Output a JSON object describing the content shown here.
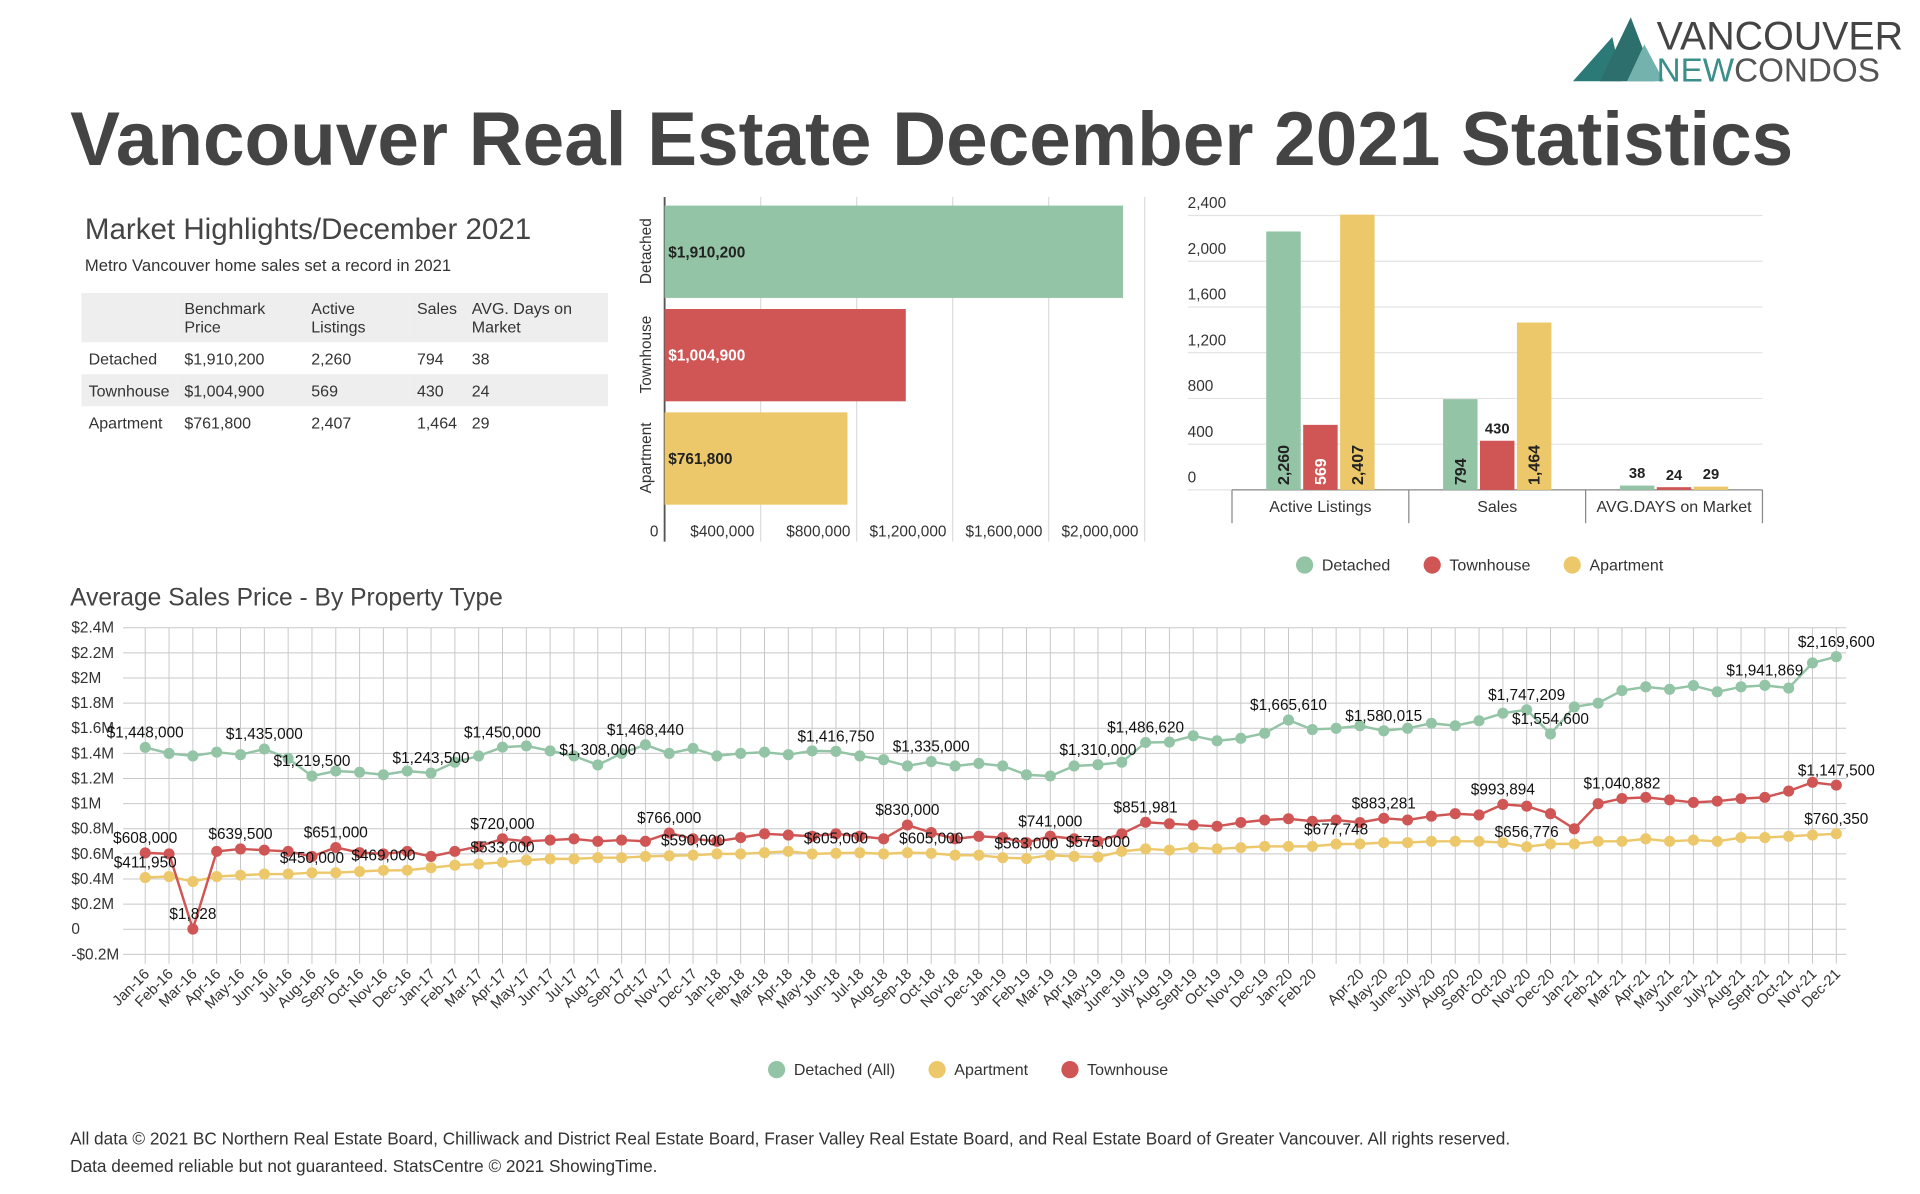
{
  "header": {
    "title": "Vancouver Real Estate December 2021 Statistics",
    "logo_brand": "VANCOUVER",
    "logo_new": "NEW",
    "logo_condos": "CONDOS"
  },
  "highlights": {
    "title": "Market Highlights/December 2021",
    "subtitle": "Metro Vancouver home sales set a record in 2021",
    "columns": [
      "Benchmark Price",
      "Active Listings",
      "Sales",
      "AVG. Days on Market"
    ],
    "rows": [
      [
        "Detached",
        "$1,910,200",
        "2,260",
        "794",
        "38"
      ],
      [
        "Townhouse",
        "$1,004,900",
        "569",
        "430",
        "24"
      ],
      [
        "Apartment",
        "$761,800",
        "2,407",
        "1,464",
        "29"
      ]
    ]
  },
  "footer": [
    "All data © 2021 BC Northern Real Estate Board, Chilliwack and District Real Estate Board, Fraser Valley Real Estate Board, and Real Estate Board of Greater Vancouver. All rights reserved.",
    "Data deemed reliable but not guaranteed. StatsCentre © 2021 ShowingTime."
  ],
  "chart_data": [
    {
      "type": "bar",
      "orientation": "horizontal",
      "categories": [
        "Detached",
        "Townhouse",
        "Apartment"
      ],
      "values": [
        1910200,
        1004900,
        761800
      ],
      "value_labels": [
        "$1,910,200",
        "$1,004,900",
        "$761,800"
      ],
      "colors": [
        "#93c4a5",
        "#d05656",
        "#edc86b"
      ],
      "xlim": [
        0,
        2000000
      ],
      "xticks": [
        0,
        {
          "value": 400000,
          "label": "$400,000"
        },
        {
          "value": 800000,
          "label": "$800,000"
        },
        {
          "value": 1200000,
          "label": "$1,200,000"
        },
        {
          "value": 1600000,
          "label": "$1,600,000"
        },
        {
          "value": 2000000,
          "label": "$2,000,000"
        }
      ],
      "grid": true
    },
    {
      "type": "bar",
      "categories": [
        "Active Listings",
        "Sales",
        "AVG.DAYS on Market"
      ],
      "series": [
        {
          "name": "Detached",
          "color": "#93c4a5",
          "values": [
            2260,
            794,
            38
          ],
          "value_labels": [
            "2,260",
            "794",
            "38"
          ]
        },
        {
          "name": "Townhouse",
          "color": "#d05656",
          "values": [
            569,
            430,
            24
          ],
          "value_labels": [
            "569",
            "430",
            "24"
          ]
        },
        {
          "name": "Apartment",
          "color": "#edc86b",
          "values": [
            2407,
            1464,
            29
          ],
          "value_labels": [
            "2,407",
            "1,464",
            "29"
          ]
        }
      ],
      "ylim": [
        0,
        2400
      ],
      "yticks": [
        0,
        400,
        800,
        {
          "value": 1200,
          "label": "1,200"
        },
        {
          "value": 1600,
          "label": "1,600"
        },
        {
          "value": 2000,
          "label": "2,000"
        },
        {
          "value": 2400,
          "label": "2,400"
        }
      ],
      "grid": true,
      "legend": "bottom"
    },
    {
      "type": "line",
      "title": "Average Sales Price - By Property Type",
      "categories": [
        "Jan-16",
        "Feb-16",
        "Mar-16",
        "Apr-16",
        "May-16",
        "Jun-16",
        "Jul-16",
        "Aug-16",
        "Sep-16",
        "Oct-16",
        "Nov-16",
        "Dec-16",
        "Jan-17",
        "Feb-17",
        "Mar-17",
        "Apr-17",
        "May-17",
        "Jun-17",
        "Jul-17",
        "Aug-17",
        "Sep-17",
        "Oct-17",
        "Nov-17",
        "Dec-17",
        "Jan-18",
        "Feb-18",
        "Mar-18",
        "Apr-18",
        "May-18",
        "Jun-18",
        "Jul-18",
        "Aug-18",
        "Sep-18",
        "Oct-18",
        "Nov-18",
        "Dec-18",
        "Jan-19",
        "Feb-19",
        "Mar-19",
        "Apr-19",
        "May-19",
        "June-19",
        "July-19",
        "Aug-19",
        "Sept-19",
        "Oct-19",
        "Nov-19",
        "Dec-19",
        "Jan-20",
        "Feb-20",
        null,
        "Apr-20",
        "May-20",
        "June-20",
        "July-20",
        "Aug-20",
        "Sept-20",
        "Oct-20",
        "Nov-20",
        "Dec-20",
        "Jan-21",
        "Feb-21",
        "Mar-21",
        "Apr-21",
        "May-21",
        "June-21",
        "July-21",
        "Aug-21",
        "Sept-21",
        "Oct-21",
        "Nov-21",
        "Dec-21"
      ],
      "series": [
        {
          "name": "Detached (All)",
          "color": "#93c4a5",
          "values": [
            1448000,
            1400000,
            1380000,
            1410000,
            1390000,
            1435000,
            1360000,
            1219500,
            1260000,
            1250000,
            1230000,
            1260000,
            1243500,
            1330000,
            1380000,
            1450000,
            1460000,
            1420000,
            1380000,
            1308000,
            1400000,
            1468440,
            1400000,
            1440000,
            1380000,
            1400000,
            1410000,
            1390000,
            1420000,
            1416750,
            1380000,
            1350000,
            1300000,
            1335000,
            1300000,
            1320000,
            1300000,
            1230000,
            1220000,
            1300000,
            1310000,
            1330000,
            1486620,
            1490000,
            1540000,
            1500000,
            1520000,
            1560000,
            1665610,
            1590000,
            1600000,
            1620000,
            1580015,
            1600000,
            1640000,
            1620000,
            1660000,
            1720000,
            1747209,
            1554600,
            1770000,
            1800000,
            1900000,
            1930000,
            1910000,
            1940000,
            1890000,
            1930000,
            1941869,
            1920000,
            2120000,
            2169600
          ],
          "value_labels": [
            "$1,448,000",
            null,
            null,
            null,
            null,
            "$1,435,000",
            null,
            "$1,219,500",
            null,
            null,
            null,
            null,
            "$1,243,500",
            null,
            null,
            "$1,450,000",
            null,
            null,
            null,
            "$1,308,000",
            null,
            "$1,468,440",
            null,
            null,
            null,
            null,
            null,
            null,
            null,
            "$1,416,750",
            null,
            null,
            null,
            "$1,335,000",
            null,
            null,
            null,
            null,
            null,
            null,
            "$1,310,000",
            null,
            "$1,486,620",
            null,
            null,
            null,
            null,
            null,
            "$1,665,610",
            null,
            null,
            null,
            "$1,580,015",
            null,
            null,
            null,
            null,
            null,
            "$1,747,209",
            "$1,554,600",
            null,
            null,
            null,
            null,
            null,
            null,
            null,
            null,
            "$1,941,869",
            null,
            null,
            "$2,169,600"
          ]
        },
        {
          "name": "Apartment",
          "color": "#edc86b",
          "values": [
            411950,
            420000,
            380000,
            420000,
            430000,
            440000,
            440000,
            450000,
            450000,
            460000,
            469000,
            470000,
            490000,
            510000,
            520000,
            533000,
            550000,
            560000,
            560000,
            570000,
            570000,
            580000,
            585000,
            590000,
            600000,
            600000,
            610000,
            620000,
            600000,
            605000,
            610000,
            600000,
            610000,
            605000,
            590000,
            590000,
            570000,
            563000,
            590000,
            580000,
            575000,
            620000,
            640000,
            630000,
            650000,
            640000,
            650000,
            660000,
            660000,
            660000,
            677748,
            680000,
            690000,
            690000,
            700000,
            700000,
            700000,
            690000,
            656776,
            680000,
            680000,
            700000,
            700000,
            720000,
            700000,
            710000,
            700000,
            730000,
            730000,
            740000,
            750000,
            760350
          ],
          "value_labels": [
            "$411,950",
            null,
            null,
            null,
            null,
            null,
            null,
            "$450,000",
            null,
            null,
            "$469,000",
            null,
            null,
            null,
            null,
            "$533,000",
            null,
            null,
            null,
            null,
            null,
            null,
            null,
            "$590,000",
            null,
            null,
            null,
            null,
            null,
            "$605,000",
            null,
            null,
            null,
            "$605,000",
            null,
            null,
            null,
            "$563,000",
            null,
            null,
            "$575,000",
            null,
            null,
            null,
            null,
            null,
            null,
            null,
            null,
            null,
            "$677,748",
            null,
            null,
            null,
            null,
            null,
            null,
            null,
            "$656,776",
            null,
            null,
            null,
            null,
            null,
            null,
            null,
            null,
            null,
            null,
            null,
            null,
            "$760,350"
          ]
        },
        {
          "name": "Townhouse",
          "color": "#d05656",
          "values": [
            608000,
            600000,
            1828,
            620000,
            639500,
            630000,
            620000,
            580000,
            651000,
            610000,
            600000,
            620000,
            580000,
            620000,
            660000,
            720000,
            700000,
            710000,
            720000,
            700000,
            710000,
            700000,
            766000,
            720000,
            700000,
            730000,
            760000,
            750000,
            740000,
            760000,
            740000,
            720000,
            830000,
            770000,
            720000,
            740000,
            730000,
            690000,
            741000,
            720000,
            700000,
            760000,
            851981,
            840000,
            830000,
            820000,
            850000,
            870000,
            880000,
            860000,
            870000,
            850000,
            883281,
            870000,
            900000,
            920000,
            910000,
            993894,
            980000,
            920000,
            800000,
            1000000,
            1040882,
            1050000,
            1030000,
            1010000,
            1020000,
            1040000,
            1050000,
            1100000,
            1170000,
            1147500
          ],
          "value_labels": [
            "$608,000",
            null,
            "$1,828",
            null,
            "$639,500",
            null,
            null,
            null,
            "$651,000",
            null,
            null,
            null,
            null,
            null,
            null,
            "$720,000",
            null,
            null,
            null,
            null,
            null,
            null,
            "$766,000",
            null,
            null,
            null,
            null,
            null,
            null,
            null,
            null,
            null,
            "$830,000",
            null,
            null,
            null,
            null,
            null,
            "$741,000",
            null,
            null,
            null,
            "$851,981",
            null,
            null,
            null,
            null,
            null,
            null,
            null,
            null,
            null,
            "$883,281",
            null,
            null,
            null,
            null,
            "$993,894",
            null,
            null,
            null,
            null,
            "$1,040,882",
            null,
            null,
            null,
            null,
            null,
            null,
            null,
            null,
            "$1,147,500"
          ]
        }
      ],
      "ylim": [
        -200000,
        2400000
      ],
      "yticks": [
        {
          "value": -200000,
          "label": "-$0.2M"
        },
        0,
        {
          "value": 200000,
          "label": "$0.2M"
        },
        {
          "value": 400000,
          "label": "$0.4M"
        },
        {
          "value": 600000,
          "label": "$0.6M"
        },
        {
          "value": 800000,
          "label": "$0.8M"
        },
        {
          "value": 1000000,
          "label": "$1M"
        },
        {
          "value": 1200000,
          "label": "$1.2M"
        },
        {
          "value": 1400000,
          "label": "$1.4M"
        },
        {
          "value": 1600000,
          "label": "$1.6M"
        },
        {
          "value": 1800000,
          "label": "$1.8M"
        },
        {
          "value": 2000000,
          "label": "$2M"
        },
        {
          "value": 2200000,
          "label": "$2.2M"
        },
        {
          "value": 2400000,
          "label": "$2.4M"
        }
      ],
      "grid": true,
      "legend": "bottom"
    }
  ]
}
